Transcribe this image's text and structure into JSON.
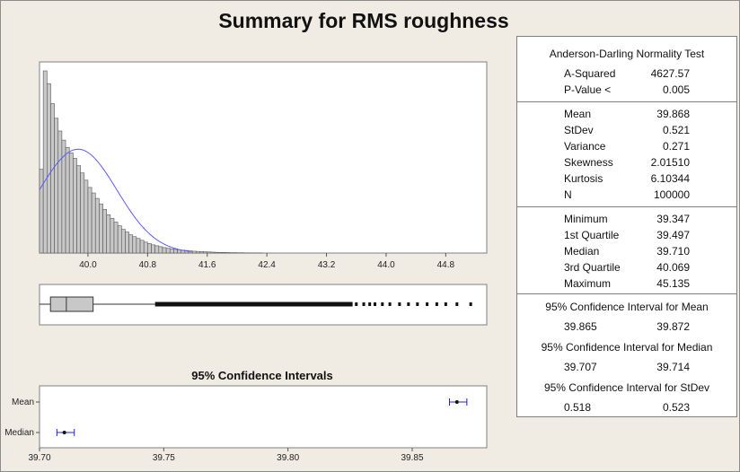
{
  "title": "Summary for RMS roughness",
  "stats": {
    "ad_header": "Anderson-Darling Normality Test",
    "ad_rows": [
      {
        "label": "A-Squared",
        "value": "4627.57"
      },
      {
        "label": "P-Value <",
        "value": "0.005"
      }
    ],
    "moment_rows": [
      {
        "label": "Mean",
        "value": "39.868"
      },
      {
        "label": "StDev",
        "value": "0.521"
      },
      {
        "label": "Variance",
        "value": "0.271"
      },
      {
        "label": "Skewness",
        "value": "2.01510"
      },
      {
        "label": "Kurtosis",
        "value": "6.10344"
      },
      {
        "label": "N",
        "value": "100000"
      }
    ],
    "quantile_rows": [
      {
        "label": "Minimum",
        "value": "39.347"
      },
      {
        "label": "1st Quartile",
        "value": "39.497"
      },
      {
        "label": "Median",
        "value": "39.710"
      },
      {
        "label": "3rd Quartile",
        "value": "40.069"
      },
      {
        "label": "Maximum",
        "value": "45.135"
      }
    ],
    "ci_mean": {
      "header": "95% Confidence Interval for Mean",
      "low": "39.865",
      "high": "39.872"
    },
    "ci_median": {
      "header": "95% Confidence Interval for Median",
      "low": "39.707",
      "high": "39.714"
    },
    "ci_stdev": {
      "header": "95% Confidence Interval for StDev",
      "low": "0.518",
      "high": "0.523"
    }
  },
  "chart_data": [
    {
      "type": "bar",
      "subtype": "histogram",
      "title": "",
      "xlim": [
        39.35,
        45.35
      ],
      "xticks": [
        "40.0",
        "40.8",
        "41.6",
        "42.4",
        "43.2",
        "44.0",
        "44.8"
      ],
      "bin_start": 39.35,
      "bin_width": 0.05,
      "counts": [
        0.46,
        1.0,
        0.93,
        0.82,
        0.74,
        0.67,
        0.62,
        0.58,
        0.55,
        0.52,
        0.48,
        0.44,
        0.4,
        0.36,
        0.33,
        0.3,
        0.27,
        0.24,
        0.21,
        0.19,
        0.17,
        0.15,
        0.13,
        0.115,
        0.1,
        0.09,
        0.08,
        0.07,
        0.06,
        0.052,
        0.045,
        0.04,
        0.035,
        0.03,
        0.026,
        0.023,
        0.02,
        0.018,
        0.016,
        0.014,
        0.012,
        0.01,
        0.009,
        0.008,
        0.007,
        0.006,
        0.005,
        0.004,
        0.0035,
        0.003,
        0.0025,
        0.002,
        0.002,
        0.0015,
        0.0015,
        0.001,
        0.001,
        0.001,
        0.0008,
        0.0008
      ],
      "count_units": "relative frequency (tallest bar = 1)",
      "normal_fit": {
        "mean": 39.868,
        "stdev": 0.521,
        "peak": 0.57,
        "color": "#5a5aff"
      },
      "bar_color": "#c8c8c8"
    },
    {
      "type": "boxplot",
      "xlim": [
        39.35,
        45.35
      ],
      "q1": 39.497,
      "median": 39.71,
      "q3": 40.069,
      "whisker_low": 39.347,
      "whisker_high": 40.9,
      "outliers_dense_range": [
        40.9,
        43.55
      ],
      "outliers_sparse": [
        43.6,
        43.7,
        43.78,
        43.85,
        43.95,
        44.05,
        44.18,
        44.3,
        44.42,
        44.55,
        44.68,
        44.8,
        44.95,
        45.135
      ],
      "box_color": "#c8c8c8"
    },
    {
      "type": "scatter",
      "subtype": "confidence-intervals",
      "title": "95% Confidence Intervals",
      "xlim": [
        39.7,
        39.88
      ],
      "xticks": [
        "39.70",
        "39.75",
        "39.80",
        "39.85"
      ],
      "categories": [
        "Mean",
        "Median"
      ],
      "intervals": [
        {
          "name": "Mean",
          "low": 39.865,
          "point": 39.868,
          "high": 39.872
        },
        {
          "name": "Median",
          "low": 39.707,
          "point": 39.71,
          "high": 39.714
        }
      ],
      "color": "#2020d0"
    }
  ]
}
